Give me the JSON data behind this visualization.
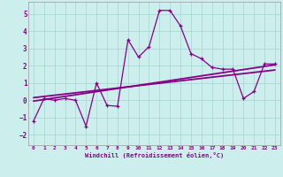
{
  "xlabel": "Windchill (Refroidissement éolien,°C)",
  "bg_color": "#cceeed",
  "grid_color": "#aad8d6",
  "line_color": "#880088",
  "xlim": [
    -0.5,
    23.5
  ],
  "ylim": [
    -2.6,
    5.7
  ],
  "xticks": [
    0,
    1,
    2,
    3,
    4,
    5,
    6,
    7,
    8,
    9,
    10,
    11,
    12,
    13,
    14,
    15,
    16,
    17,
    18,
    19,
    20,
    21,
    22,
    23
  ],
  "yticks": [
    -2,
    -1,
    0,
    1,
    2,
    3,
    4,
    5
  ],
  "data_x": [
    0,
    1,
    2,
    3,
    4,
    5,
    6,
    7,
    8,
    9,
    10,
    11,
    12,
    13,
    14,
    15,
    16,
    17,
    18,
    19,
    20,
    21,
    22,
    23
  ],
  "data_y": [
    -1.2,
    0.1,
    0.0,
    0.1,
    0.0,
    -1.5,
    1.0,
    -0.3,
    -0.35,
    3.5,
    2.5,
    3.1,
    5.2,
    5.2,
    4.3,
    2.7,
    2.4,
    1.9,
    1.8,
    1.8,
    0.1,
    0.5,
    2.1,
    2.1
  ],
  "trend_x": [
    0,
    23
  ],
  "trend_y": [
    -0.05,
    2.05
  ],
  "trend2_x": [
    0,
    23
  ],
  "trend2_y": [
    0.15,
    1.75
  ]
}
